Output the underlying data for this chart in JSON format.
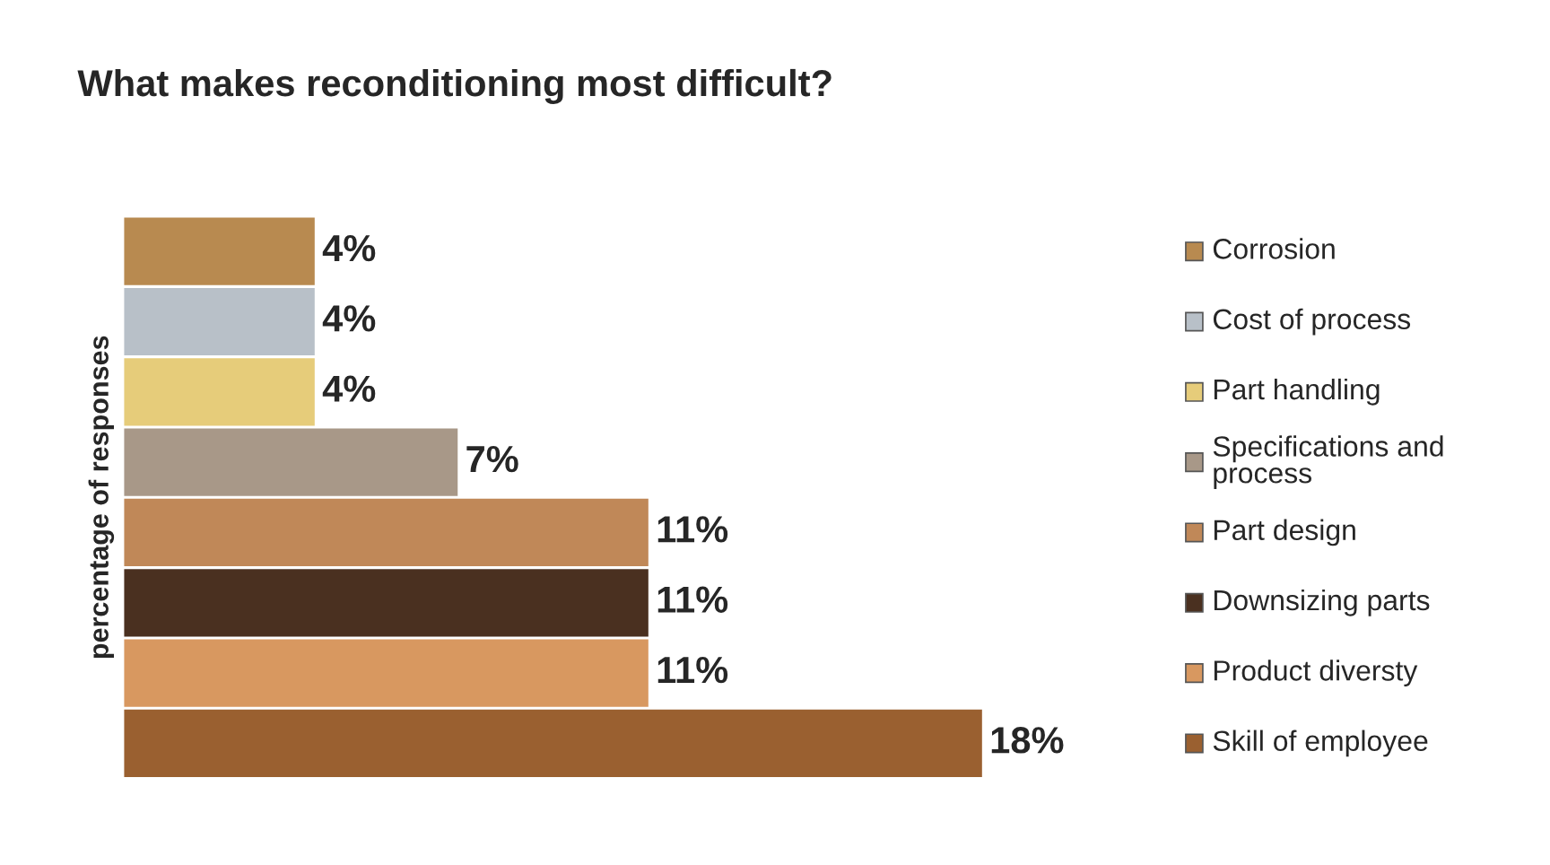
{
  "chart_data": {
    "type": "bar",
    "orientation": "horizontal",
    "title": "What makes reconditioning most difficult?",
    "ylabel": "percentage of responses",
    "categories": [
      "Corrosion",
      "Cost of process",
      "Part handling",
      "Specifications and\nprocess",
      "Part design",
      "Downsizing parts",
      "Product diversty",
      "Skill of employee"
    ],
    "values": [
      4,
      4,
      4,
      7,
      11,
      11,
      11,
      18
    ],
    "value_labels": [
      "4%",
      "4%",
      "4%",
      "7%",
      "11%",
      "11%",
      "11%",
      "18%"
    ],
    "colors": [
      "#b88a50",
      "#b8c0c8",
      "#e6cc7a",
      "#a89888",
      "#c08858",
      "#4a3020",
      "#d89860",
      "#9a6030"
    ],
    "tick_labels": false
  }
}
